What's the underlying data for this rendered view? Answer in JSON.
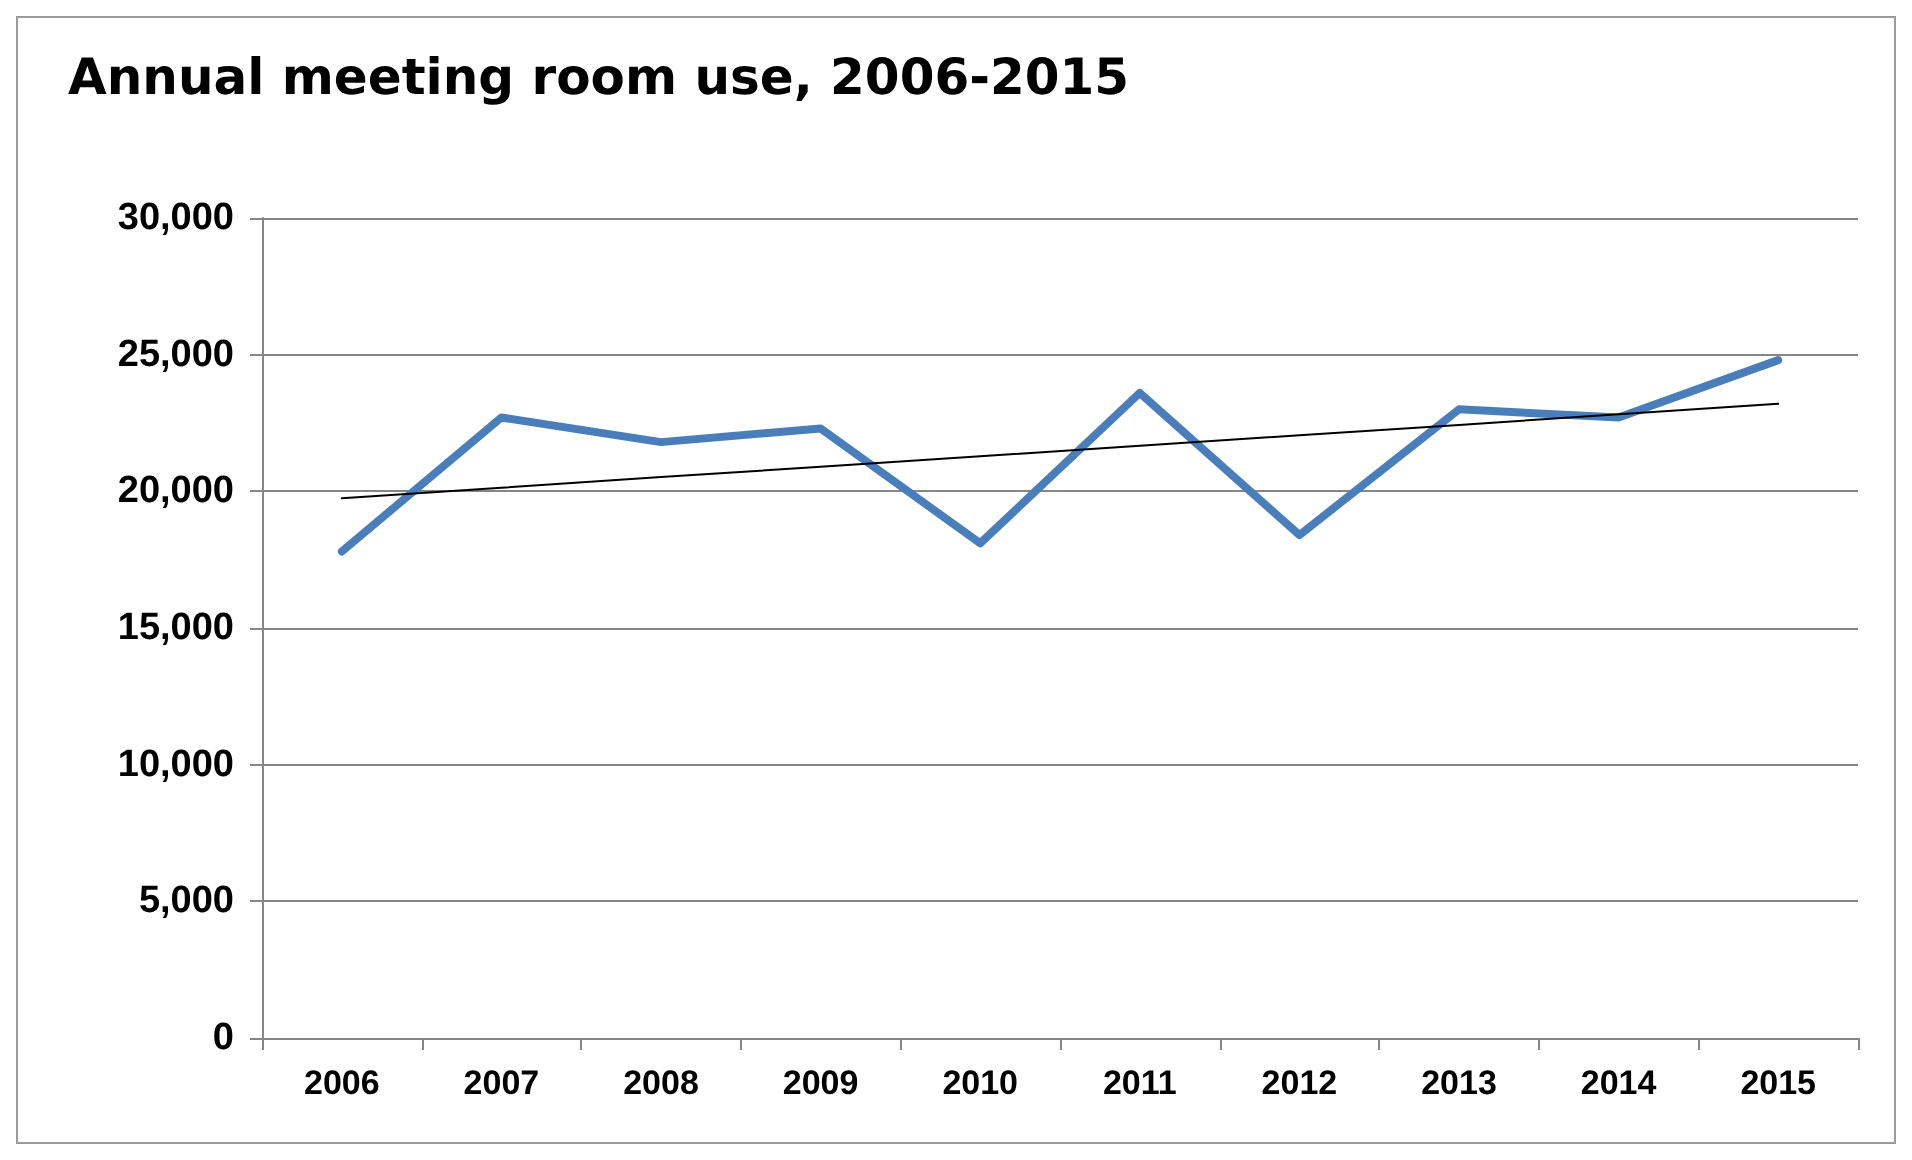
{
  "chart_data": {
    "type": "line",
    "title": "Annual meeting room use, 2006-2015",
    "categories": [
      "2006",
      "2007",
      "2008",
      "2009",
      "2010",
      "2011",
      "2012",
      "2013",
      "2014",
      "2015"
    ],
    "series": [
      {
        "color": "#4a7ebb",
        "values": [
          17800,
          22700,
          21800,
          22300,
          18100,
          23600,
          18400,
          23000,
          22700,
          24800
        ]
      },
      {
        "type": "line",
        "color": "#000000",
        "values": [
          19750,
          20130,
          20520,
          20900,
          21280,
          21670,
          22050,
          22430,
          22820,
          23200
        ]
      }
    ],
    "ylim": [
      0,
      30000
    ],
    "yticks": [
      0,
      {
        "value": 5000,
        "label": "5,000"
      },
      {
        "value": 10000,
        "label": "10,000"
      },
      {
        "value": 15000,
        "label": "15,000"
      },
      {
        "value": 20000,
        "label": "20,000"
      },
      {
        "value": 25000,
        "label": "25,000"
      },
      {
        "value": 30000,
        "label": "30,000"
      }
    ],
    "grid": "y",
    "marker": "none",
    "line_style": "solid"
  }
}
